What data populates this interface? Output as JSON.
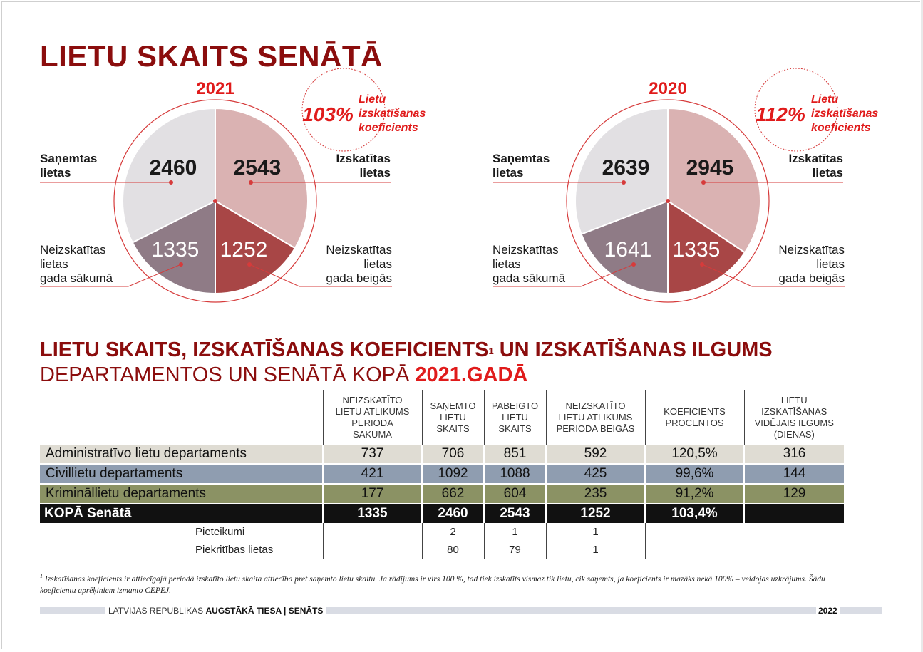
{
  "title": "LIETU SKAITS SENĀTĀ",
  "pies": [
    {
      "year": "2021",
      "coefficient": "103%",
      "coefficient_label": [
        "Lietu",
        "izskatīšanas",
        "koeficients"
      ],
      "slices": {
        "received": "2460",
        "reviewed": "2543",
        "pending_start": "1335",
        "pending_end": "1252"
      },
      "labels": {
        "received": [
          "Saņemtas",
          "lietas"
        ],
        "reviewed": [
          "Izskatītas",
          "lietas"
        ],
        "pending_start": [
          "Neizskatītas",
          "lietas",
          "gada sākumā"
        ],
        "pending_end": [
          "Neizskatītas",
          "lietas",
          "gada beigās"
        ]
      }
    },
    {
      "year": "2020",
      "coefficient": "112%",
      "coefficient_label": [
        "Lietu",
        "izskatīšanas",
        "koeficients"
      ],
      "slices": {
        "received": "2639",
        "reviewed": "2945",
        "pending_start": "1641",
        "pending_end": "1335"
      },
      "labels": {
        "received": [
          "Saņemtas",
          "lietas"
        ],
        "reviewed": [
          "Izskatītas",
          "lietas"
        ],
        "pending_start": [
          "Neizskatītas",
          "lietas",
          "gada sākumā"
        ],
        "pending_end": [
          "Neizskatītas",
          "lietas",
          "gada beigās"
        ]
      }
    }
  ],
  "colors": {
    "title": "#8b0d0d",
    "accent": "#e01b1b",
    "received": "#e2e0e3",
    "reviewed": "#dab2b2",
    "pending_start": "#8f7b86",
    "pending_end": "#a84646"
  },
  "section": {
    "title": "LIETU SKAITS, IZSKATĪŠANAS KOEFICIENTS",
    "title_sup": "1",
    "title_end": " UN IZSKATĪŠANAS ILGUMS",
    "subtitle": "DEPARTAMENTOS UN SENĀTĀ KOPĀ ",
    "subtitle_year": "2021.GADĀ"
  },
  "table": {
    "headers": [
      [
        "NEIZSKATĪTO",
        "LIETU ATLIKUMS",
        "PERIODA",
        "SĀKUMĀ"
      ],
      [
        "SAŅEMTO",
        "LIETU",
        "SKAITS"
      ],
      [
        "PABEIGTO",
        "LIETU",
        "SKAITS"
      ],
      [
        "NEIZSKATĪTO",
        "LIETU ATLIKUMS",
        "PERIODA BEIGĀS"
      ],
      [
        "KOEFICIENTS",
        "PROCENTOS"
      ],
      [
        "LIETU",
        "IZSKATĪŠANAS",
        "VIDĒJAIS ILGUMS",
        "(DIENĀS)"
      ]
    ],
    "rows": [
      {
        "name": "Administratīvo lietu departaments",
        "values": [
          "737",
          "706",
          "851",
          "592",
          "120,5%",
          "316"
        ]
      },
      {
        "name": "Civillietu departaments",
        "values": [
          "421",
          "1092",
          "1088",
          "425",
          "99,6%",
          "144"
        ]
      },
      {
        "name": "Krimināllietu departaments",
        "values": [
          "177",
          "662",
          "604",
          "235",
          "91,2%",
          "129"
        ]
      }
    ],
    "total": {
      "name": "KOPĀ Senātā",
      "values": [
        "1335",
        "2460",
        "2543",
        "1252",
        "103,4%",
        ""
      ]
    },
    "extra": [
      {
        "name": "Pieteikumi",
        "values": [
          "2",
          "1",
          "1"
        ]
      },
      {
        "name": "Piekritības lietas",
        "values": [
          "80",
          "79",
          "1"
        ]
      }
    ]
  },
  "footnote": {
    "marker": "1",
    "text": " Izskatīšanas koeficients ir attiecīgajā periodā izskatīto lietu skaita attiecība pret saņemto lietu skaitu. Ja rādījums ir virs 100 %, tad tiek izskatīts vismaz tik lietu, cik saņemts, ja koeficients ir mazāks nekā 100% – veidojas uzkrājums. Šādu koeficientu aprēķiniem izmanto CEPEJ."
  },
  "footer": {
    "prefix": "LATVIJAS REPUBLIKAS ",
    "bold": "AUGSTĀKĀ TIESA | SENĀTS",
    "year": "2022"
  }
}
